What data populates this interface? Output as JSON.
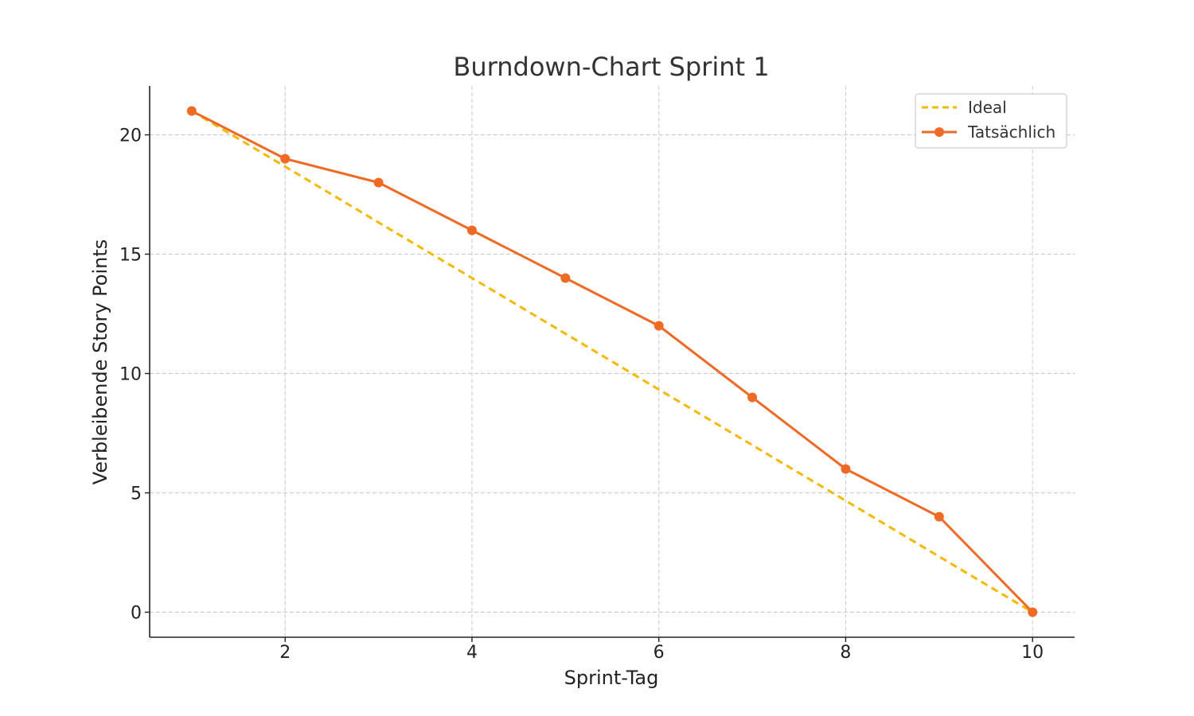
{
  "chart_data": {
    "type": "line",
    "title": "Burndown-Chart Sprint 1",
    "xlabel": "Sprint-Tag",
    "ylabel": "Verbleibende Story Points",
    "xlim": [
      0.55,
      10.45
    ],
    "ylim": [
      -1.05,
      22.05
    ],
    "xticks": [
      2,
      4,
      6,
      8,
      10
    ],
    "yticks": [
      0,
      5,
      10,
      15,
      20
    ],
    "grid": true,
    "legend_position": "top-right",
    "series": [
      {
        "name": "Ideal",
        "style": "dashed",
        "color": "#f5b800",
        "x": [
          1,
          2,
          3,
          4,
          5,
          6,
          7,
          8,
          9,
          10
        ],
        "values": [
          21,
          18.67,
          16.33,
          14,
          11.67,
          9.33,
          7,
          4.67,
          2.33,
          0
        ]
      },
      {
        "name": "Tatsächlich",
        "style": "solid-markers",
        "color": "#ee6a25",
        "x": [
          1,
          2,
          3,
          4,
          5,
          6,
          7,
          8,
          9,
          10
        ],
        "values": [
          21,
          19,
          18,
          16,
          14,
          12,
          9,
          6,
          4,
          0
        ]
      }
    ]
  }
}
